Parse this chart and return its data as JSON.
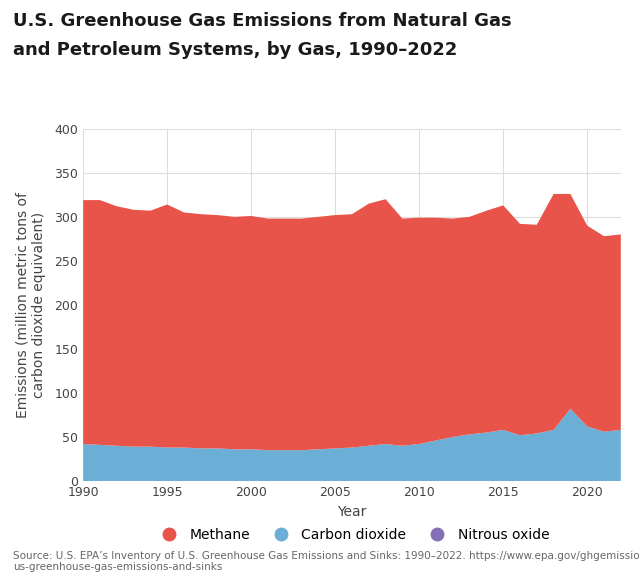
{
  "years": [
    1990,
    1991,
    1992,
    1993,
    1994,
    1995,
    1996,
    1997,
    1998,
    1999,
    2000,
    2001,
    2002,
    2003,
    2004,
    2005,
    2006,
    2007,
    2008,
    2009,
    2010,
    2011,
    2012,
    2013,
    2014,
    2015,
    2016,
    2017,
    2018,
    2019,
    2020,
    2021,
    2022
  ],
  "nitrous_oxide": [
    0.4,
    0.4,
    0.4,
    0.4,
    0.4,
    0.4,
    0.4,
    0.4,
    0.4,
    0.4,
    0.4,
    0.4,
    0.4,
    0.4,
    0.4,
    0.4,
    0.4,
    0.4,
    0.4,
    0.4,
    0.4,
    0.4,
    0.4,
    0.4,
    0.4,
    0.4,
    0.4,
    0.4,
    0.4,
    0.4,
    0.4,
    0.4,
    0.4
  ],
  "carbon_dioxide": [
    42,
    41,
    40,
    39,
    39,
    38,
    38,
    37,
    37,
    36,
    36,
    35,
    35,
    35,
    36,
    37,
    38,
    40,
    42,
    40,
    42,
    46,
    50,
    53,
    55,
    58,
    52,
    54,
    58,
    82,
    62,
    56,
    58
  ],
  "methane": [
    277,
    278,
    272,
    269,
    268,
    276,
    267,
    266,
    265,
    264,
    265,
    263,
    263,
    263,
    264,
    265,
    265,
    275,
    278,
    258,
    257,
    253,
    248,
    247,
    252,
    255,
    240,
    237,
    268,
    244,
    228,
    222,
    222
  ],
  "methane_color": "#e8534a",
  "co2_color": "#6baed6",
  "n2o_color": "#8470b8",
  "title_line1": "U.S. Greenhouse Gas Emissions from Natural Gas",
  "title_line2": "and Petroleum Systems, by Gas, 1990–2022",
  "xlabel": "Year",
  "ylabel": "Emissions (million metric tons of\ncarbon dioxide equivalent)",
  "ylim": [
    0,
    400
  ],
  "yticks": [
    0,
    50,
    100,
    150,
    200,
    250,
    300,
    350,
    400
  ],
  "xticks": [
    1990,
    1995,
    2000,
    2005,
    2010,
    2015,
    2020
  ],
  "legend_labels": [
    "Methane",
    "Carbon dioxide",
    "Nitrous oxide"
  ],
  "source_text": "Source: U.S. EPA’s Inventory of U.S. Greenhouse Gas Emissions and Sinks: 1990–2022. https://www.epa.gov/ghgemissions/inventory-\nus-greenhouse-gas-emissions-and-sinks",
  "background_color": "#ffffff",
  "grid_color": "#dddddd",
  "title_fontsize": 13,
  "axis_label_fontsize": 10,
  "tick_fontsize": 9,
  "legend_fontsize": 10,
  "source_fontsize": 7.5
}
